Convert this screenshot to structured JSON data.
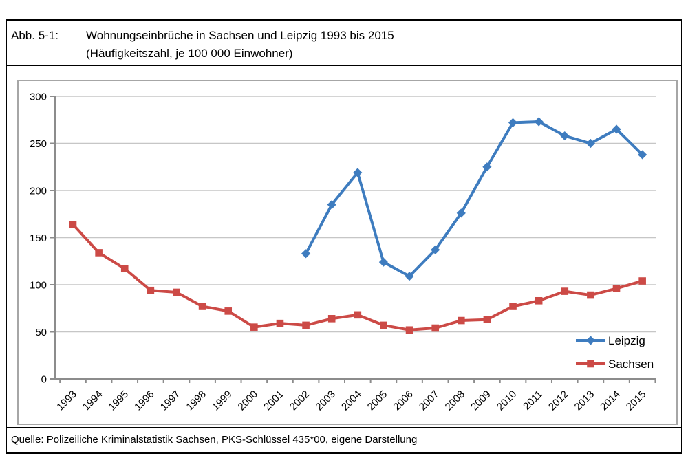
{
  "figure": {
    "label": "Abb. 5-1:",
    "title_line1": "Wohnungseinbrüche in Sachsen und Leipzig 1993 bis 2015",
    "title_line2": "(Häufigkeitszahl, je 100 000 Einwohner)",
    "source": "Quelle: Polizeiliche Kriminalstatistik Sachsen, PKS-Schlüssel 435*00, eigene Darstellung"
  },
  "chart_data": {
    "type": "line",
    "title": "Wohnungseinbrüche in Sachsen und Leipzig 1993 bis 2015 (Häufigkeitszahl, je 100 000 Einwohner)",
    "categories": [
      "1993",
      "1994",
      "1995",
      "1996",
      "1997",
      "1998",
      "1999",
      "2000",
      "2001",
      "2002",
      "2003",
      "2004",
      "2005",
      "2006",
      "2007",
      "2008",
      "2009",
      "2010",
      "2011",
      "2012",
      "2013",
      "2014",
      "2015"
    ],
    "series": [
      {
        "name": "Leipzig",
        "color": "#3E7CBF",
        "marker": "diamond",
        "values": [
          null,
          null,
          null,
          null,
          null,
          null,
          null,
          null,
          null,
          133,
          185,
          219,
          124,
          109,
          137,
          176,
          225,
          272,
          273,
          258,
          250,
          265,
          238
        ]
      },
      {
        "name": "Sachsen",
        "color": "#CC4A46",
        "marker": "square",
        "values": [
          164,
          134,
          117,
          94,
          92,
          77,
          72,
          55,
          59,
          57,
          64,
          68,
          57,
          52,
          54,
          62,
          63,
          77,
          83,
          93,
          89,
          96,
          104
        ]
      }
    ],
    "xlabel": "",
    "ylabel": "",
    "ylim": [
      0,
      300
    ],
    "yticks": [
      0,
      50,
      100,
      150,
      200,
      250,
      300
    ],
    "grid": "horizontal",
    "legend_position": "inside-bottom-right",
    "colors": {
      "axis": "#8C8C8C",
      "grid": "#C6C6C6",
      "frame": "#A6A6A6",
      "text": "#000000"
    }
  }
}
